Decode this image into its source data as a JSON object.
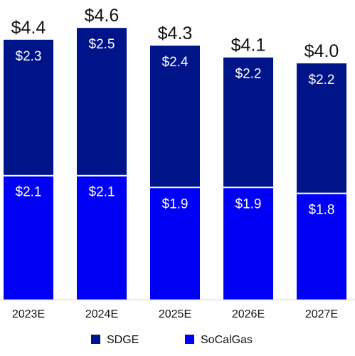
{
  "chart_data": {
    "type": "bar",
    "stacked": true,
    "unit_prefix": "$",
    "categories": [
      "2023E",
      "2024E",
      "2025E",
      "2026E",
      "2027E"
    ],
    "series": [
      {
        "name": "SoCalGas",
        "values": [
          2.1,
          2.1,
          1.9,
          1.9,
          1.8
        ],
        "color": "#0000f5"
      },
      {
        "name": "SDGE",
        "values": [
          2.3,
          2.5,
          2.4,
          2.2,
          2.2
        ],
        "color": "#001489"
      }
    ],
    "value_labels": {
      "SoCalGas": [
        "$2.1",
        "$2.1",
        "$1.9",
        "$1.9",
        "$1.8"
      ],
      "SDGE": [
        "$2.3",
        "$2.5",
        "$2.4",
        "$2.2",
        "$2.2"
      ]
    },
    "totals": [
      4.4,
      4.6,
      4.3,
      4.1,
      4.0
    ],
    "total_labels": [
      "$4.4",
      "$4.6",
      "$4.3",
      "$4.1",
      "$4.0"
    ],
    "legend": {
      "position": "bottom",
      "entries": [
        "SDGE",
        "SoCalGas"
      ]
    },
    "ylim": [
      0,
      4.6
    ],
    "grid": false,
    "title": "",
    "xlabel": "",
    "ylabel": ""
  }
}
